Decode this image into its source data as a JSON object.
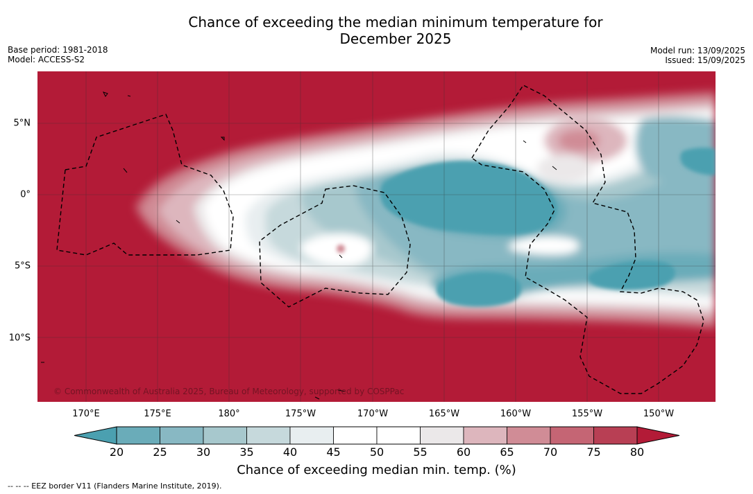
{
  "header": {
    "title_line1": "Chance of exceeding the median minimum temperature for",
    "title_line2": "December 2025",
    "base_period": "Base period: 1981-2018",
    "model": "Model: ACCESS-S2",
    "model_run": "Model run: 13/09/2025",
    "issued": "Issued: 15/09/2025"
  },
  "map": {
    "credit": "© Commonwealth of Australia 2025, Bureau of Meteorology, supported by COSPPac",
    "lon_labels": [
      "170°E",
      "175°E",
      "180°",
      "175°W",
      "170°W",
      "165°W",
      "160°W",
      "155°W",
      "150°W"
    ],
    "lat_labels": [
      "5°N",
      "0°",
      "5°S",
      "10°S"
    ],
    "background_color": "#b31b37",
    "legend_note": "--  --  -- EEZ border V11 (Flanders Marine Institute, 2019)."
  },
  "colorbar": {
    "ticks": [
      "20",
      "25",
      "30",
      "35",
      "40",
      "45",
      "50",
      "55",
      "60",
      "65",
      "70",
      "75",
      "80"
    ],
    "colors": [
      "#4ba0b0",
      "#6aacb9",
      "#88b8c3",
      "#a7c8cd",
      "#c6d9dc",
      "#e8eef0",
      "#ffffff",
      "#ffffff",
      "#ebe8e9",
      "#ddb6bd",
      "#d08c96",
      "#c56574",
      "#b83f54",
      "#b31b37"
    ],
    "label": "Chance of exceeding median min. temp. (%)"
  }
}
